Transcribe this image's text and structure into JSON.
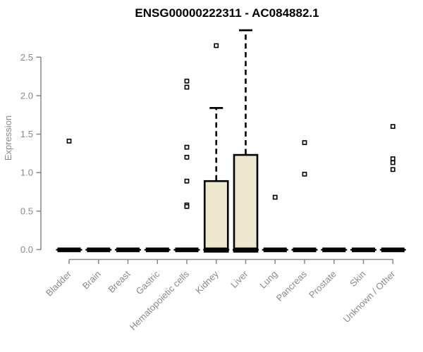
{
  "chart_data": {
    "type": "boxplot",
    "title": "ENSG00000222311 - AC084882.1",
    "xlabel": "",
    "ylabel": "Expression",
    "ylim": [
      0,
      2.9
    ],
    "ytick_labels": [
      "0.0",
      "0.5",
      "1.0",
      "1.5",
      "2.0",
      "2.5"
    ],
    "grid": false,
    "legend": "none",
    "colors": {
      "box_fill": "#ece7cd",
      "box_stroke": "#000000",
      "axis": "#888888",
      "tick_text": "#8a8a8a",
      "title_text": "#000000",
      "outlier_fill": "#ffffff"
    },
    "categories": [
      "Bladder",
      "Brain",
      "Breast",
      "Gastric",
      "Hematopoietic cells",
      "Kidney",
      "Liver",
      "Lung",
      "Pancreas",
      "Prostate",
      "Skin",
      "Unknown / Other"
    ],
    "boxes": [
      {
        "label": "Bladder",
        "q1": 0,
        "median": 0,
        "q3": 0,
        "whisker_low": 0,
        "whisker_high": 0,
        "outliers": [
          1.41
        ]
      },
      {
        "label": "Brain",
        "q1": 0,
        "median": 0,
        "q3": 0,
        "whisker_low": 0,
        "whisker_high": 0,
        "outliers": []
      },
      {
        "label": "Breast",
        "q1": 0,
        "median": 0,
        "q3": 0,
        "whisker_low": 0,
        "whisker_high": 0,
        "outliers": []
      },
      {
        "label": "Gastric",
        "q1": 0,
        "median": 0,
        "q3": 0,
        "whisker_low": 0,
        "whisker_high": 0,
        "outliers": []
      },
      {
        "label": "Hematopoietic cells",
        "q1": 0,
        "median": 0,
        "q3": 0,
        "whisker_low": 0,
        "whisker_high": 0,
        "outliers": [
          2.19,
          2.11,
          1.33,
          1.2,
          0.89,
          0.58,
          0.56
        ]
      },
      {
        "label": "Kidney",
        "q1": 0,
        "median": 0,
        "q3": 0.89,
        "whisker_low": 0,
        "whisker_high": 1.84,
        "outliers": [
          2.65
        ]
      },
      {
        "label": "Liver",
        "q1": 0,
        "median": 0,
        "q3": 1.23,
        "whisker_low": 0,
        "whisker_high": 2.85,
        "outliers": []
      },
      {
        "label": "Lung",
        "q1": 0,
        "median": 0,
        "q3": 0,
        "whisker_low": 0,
        "whisker_high": 0,
        "outliers": [
          0.68
        ]
      },
      {
        "label": "Pancreas",
        "q1": 0,
        "median": 0,
        "q3": 0,
        "whisker_low": 0,
        "whisker_high": 0,
        "outliers": [
          1.39,
          0.98
        ]
      },
      {
        "label": "Prostate",
        "q1": 0,
        "median": 0,
        "q3": 0,
        "whisker_low": 0,
        "whisker_high": 0,
        "outliers": []
      },
      {
        "label": "Skin",
        "q1": 0,
        "median": 0,
        "q3": 0,
        "whisker_low": 0,
        "whisker_high": 0,
        "outliers": []
      },
      {
        "label": "Unknown / Other",
        "q1": 0,
        "median": 0,
        "q3": 0,
        "whisker_low": 0,
        "whisker_high": 0,
        "outliers": [
          1.6,
          1.18,
          1.13,
          1.04
        ]
      }
    ]
  }
}
